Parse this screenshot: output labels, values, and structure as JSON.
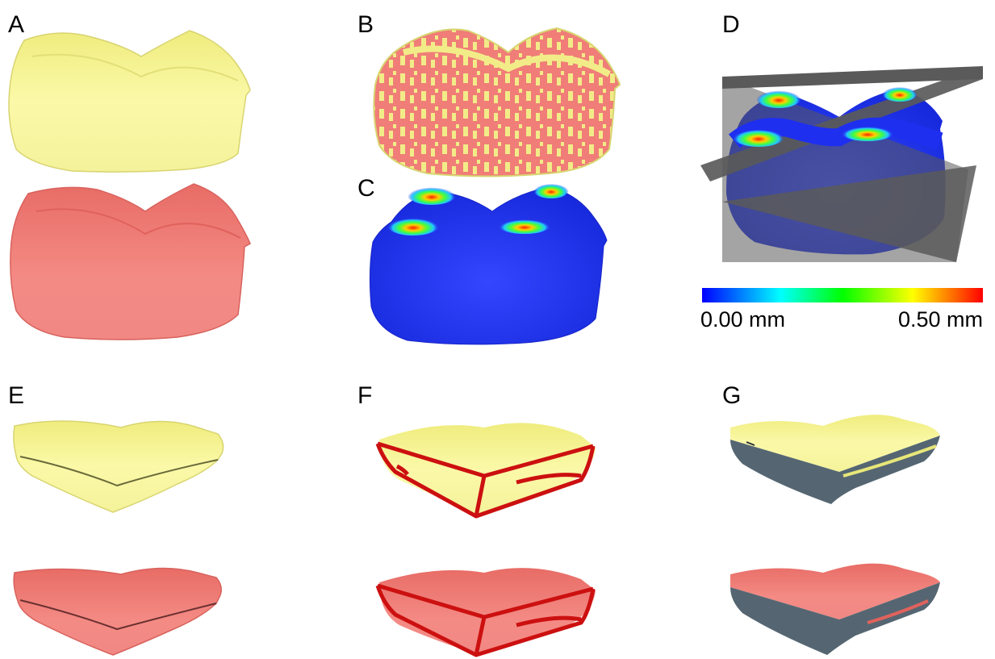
{
  "panels": {
    "A": {
      "label": "A"
    },
    "B": {
      "label": "B"
    },
    "C": {
      "label": "C"
    },
    "D": {
      "label": "D"
    },
    "E": {
      "label": "E"
    },
    "F": {
      "label": "F"
    },
    "G": {
      "label": "G"
    }
  },
  "colorbar": {
    "min_label": "0.00 mm",
    "max_label": "0.50 mm",
    "min_value": 0.0,
    "max_value": 0.5,
    "unit": "mm",
    "gradient": [
      "#0000ff",
      "#00ffff",
      "#00ff00",
      "#ffff00",
      "#ff0000"
    ]
  },
  "colors": {
    "yellow_model": "#f8f69a",
    "red_model": "#f07d78",
    "deviation_base": "#1e2ff0",
    "cut_plane": "#5a5a5a",
    "section_face": "#556672",
    "outline_tube": "#d41010"
  }
}
